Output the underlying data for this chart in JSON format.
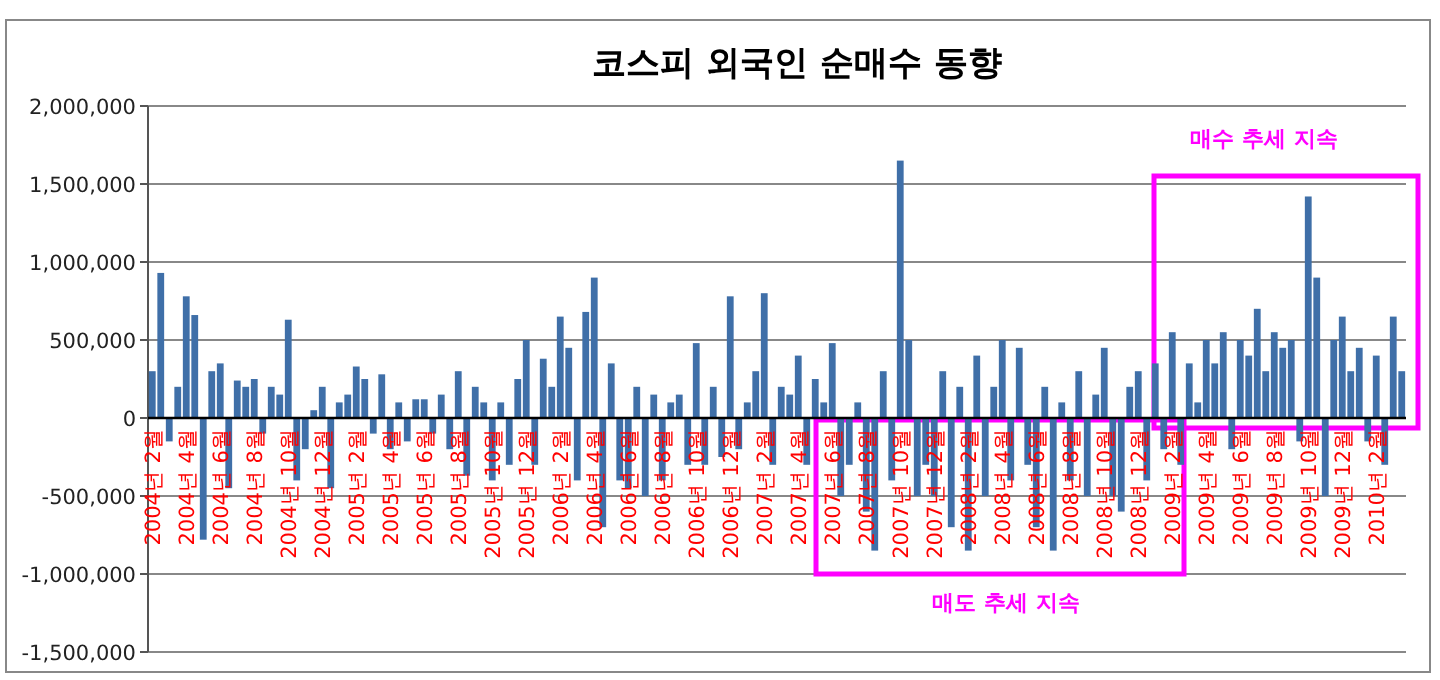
{
  "chart_data": {
    "type": "bar",
    "title": "코스피 외국인 순매수 동향",
    "categories": [
      "2004년 2월",
      null,
      null,
      null,
      "2004년 4월",
      null,
      null,
      null,
      "2004년 6월",
      null,
      null,
      null,
      "2004년 8월",
      null,
      null,
      null,
      "2004년 10월",
      null,
      null,
      null,
      "2004년 12월",
      null,
      null,
      null,
      "2005년 2월",
      null,
      null,
      null,
      "2005년 4월",
      null,
      null,
      null,
      "2005년 6월",
      null,
      null,
      null,
      "2005년 8월",
      null,
      null,
      null,
      "2005년 10월",
      null,
      null,
      null,
      "2005년 12월",
      null,
      null,
      null,
      "2006년 2월",
      null,
      null,
      null,
      "2006년 4월",
      null,
      null,
      null,
      "2006년 6월",
      null,
      null,
      null,
      "2006년 8월",
      null,
      null,
      null,
      "2006년 10월",
      null,
      null,
      null,
      "2006년 12월",
      null,
      null,
      null,
      "2007년 2월",
      null,
      null,
      null,
      "2007년 4월",
      null,
      null,
      null,
      "2007년 6월",
      null,
      null,
      null,
      "2007년 8월",
      null,
      null,
      null,
      "2007년 10월",
      null,
      null,
      null,
      "2007년 12월",
      null,
      null,
      null,
      "2008년 2월",
      null,
      null,
      null,
      "2008년 4월",
      null,
      null,
      null,
      "2008년 6월",
      null,
      null,
      null,
      "2008년 8월",
      null,
      null,
      null,
      "2008년 10월",
      null,
      null,
      null,
      "2008년 12월",
      null,
      null,
      null,
      "2009년 2월",
      null,
      null,
      null,
      "2009년 4월",
      null,
      null,
      null,
      "2009년 6월",
      null,
      null,
      null,
      "2009년 8월",
      null,
      null,
      null,
      "2009년 10월",
      null,
      null,
      null,
      "2009년 12월",
      null,
      null,
      null,
      "2010년 2월",
      null,
      null,
      null
    ],
    "values": [
      300000,
      930000,
      -150000,
      200000,
      780000,
      660000,
      -780000,
      300000,
      350000,
      -450000,
      240000,
      200000,
      250000,
      -100000,
      200000,
      150000,
      630000,
      -400000,
      -200000,
      50000,
      200000,
      -450000,
      100000,
      150000,
      330000,
      250000,
      -100000,
      280000,
      -200000,
      100000,
      -150000,
      120000,
      120000,
      -100000,
      150000,
      -200000,
      300000,
      -370000,
      200000,
      100000,
      -400000,
      100000,
      -300000,
      250000,
      500000,
      -300000,
      380000,
      200000,
      650000,
      450000,
      -400000,
      680000,
      900000,
      -700000,
      350000,
      -400000,
      -450000,
      200000,
      -500000,
      150000,
      -400000,
      100000,
      150000,
      -300000,
      480000,
      -300000,
      200000,
      -250000,
      780000,
      -200000,
      100000,
      300000,
      800000,
      -300000,
      200000,
      150000,
      400000,
      -300000,
      250000,
      100000,
      480000,
      -500000,
      -300000,
      100000,
      -600000,
      -850000,
      300000,
      -400000,
      1650000,
      500000,
      -500000,
      -300000,
      -500000,
      300000,
      -700000,
      200000,
      -850000,
      400000,
      -500000,
      200000,
      500000,
      -400000,
      450000,
      -300000,
      -700000,
      200000,
      -850000,
      100000,
      -400000,
      300000,
      -500000,
      150000,
      450000,
      -500000,
      -600000,
      200000,
      300000,
      -400000,
      350000,
      -200000,
      550000,
      -300000,
      350000,
      100000,
      500000,
      350000,
      550000,
      -200000,
      500000,
      400000,
      700000,
      300000,
      550000,
      450000,
      500000,
      -150000,
      1420000,
      900000,
      -500000,
      500000,
      650000,
      300000,
      450000,
      -150000,
      400000,
      -300000,
      650000,
      300000
    ],
    "color": "#3f6fa8",
    "ylim": [
      -1500000,
      2000000
    ],
    "yticks": [
      {
        "value": -1500000,
        "label": "-1,500,000"
      },
      {
        "value": -1000000,
        "label": "-1,000,000"
      },
      {
        "value": -500000,
        "label": "-500,000"
      },
      {
        "value": 0,
        "label": "0"
      },
      {
        "value": 500000,
        "label": "500,000"
      },
      {
        "value": 1000000,
        "label": "1,000,000"
      },
      {
        "value": 1500000,
        "label": "1,500,000"
      },
      {
        "value": 2000000,
        "label": "2,000,000"
      }
    ],
    "grid": "y",
    "annotations": [
      "매수 추세 지속",
      "매도 추세 지속"
    ]
  }
}
